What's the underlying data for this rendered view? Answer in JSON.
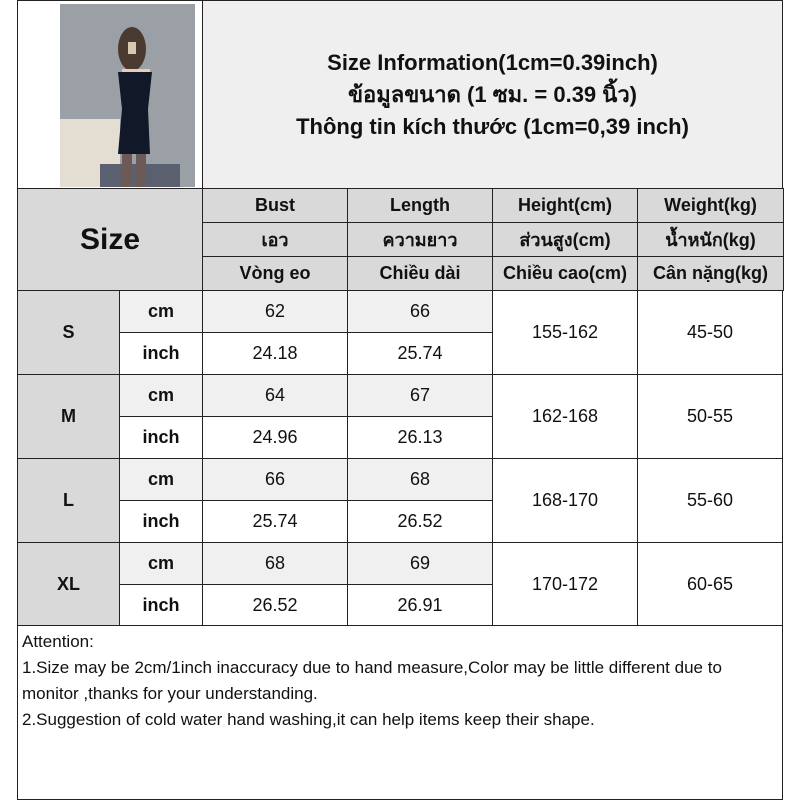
{
  "title": {
    "line1": "Size Information(1cm=0.39inch)",
    "line2": "ข้อมูลขนาด (1 ซม. = 0.39 นิ้ว)",
    "line3": "Thông tin kích thước (1cm=0,39 inch)"
  },
  "size_label": "Size",
  "headers": [
    {
      "en": "Bust",
      "th": "เอว",
      "vi": "Vòng eo"
    },
    {
      "en": "Length",
      "th": "ความยาว",
      "vi": "Chiều dài"
    },
    {
      "en": "Height(cm)",
      "th": "ส่วนสูง(cm)",
      "vi": "Chiều cao(cm)"
    },
    {
      "en": "Weight(kg)",
      "th": "น้ำหนัก(kg)",
      "vi": "Cân nặng(kg)"
    }
  ],
  "units": {
    "cm": "cm",
    "inch": "inch"
  },
  "rows": [
    {
      "size": "S",
      "bust_cm": "62",
      "length_cm": "66",
      "bust_in": "24.18",
      "length_in": "25.74",
      "height": "155-162",
      "weight": "45-50"
    },
    {
      "size": "M",
      "bust_cm": "64",
      "length_cm": "67",
      "bust_in": "24.96",
      "length_in": "26.13",
      "height": "162-168",
      "weight": "50-55"
    },
    {
      "size": "L",
      "bust_cm": "66",
      "length_cm": "68",
      "bust_in": "25.74",
      "length_in": "26.52",
      "height": "168-170",
      "weight": "55-60"
    },
    {
      "size": "XL",
      "bust_cm": "68",
      "length_cm": "69",
      "bust_in": "26.52",
      "length_in": "26.91",
      "height": "170-172",
      "weight": "60-65"
    }
  ],
  "attention": {
    "heading": "Attention:",
    "note1": "1.Size may be 2cm/1inch inaccuracy due to hand measure,Color may be little different due to monitor ,thanks for your understanding.",
    "note2": "2.Suggestion of cold water hand washing,it can help items keep their shape."
  }
}
